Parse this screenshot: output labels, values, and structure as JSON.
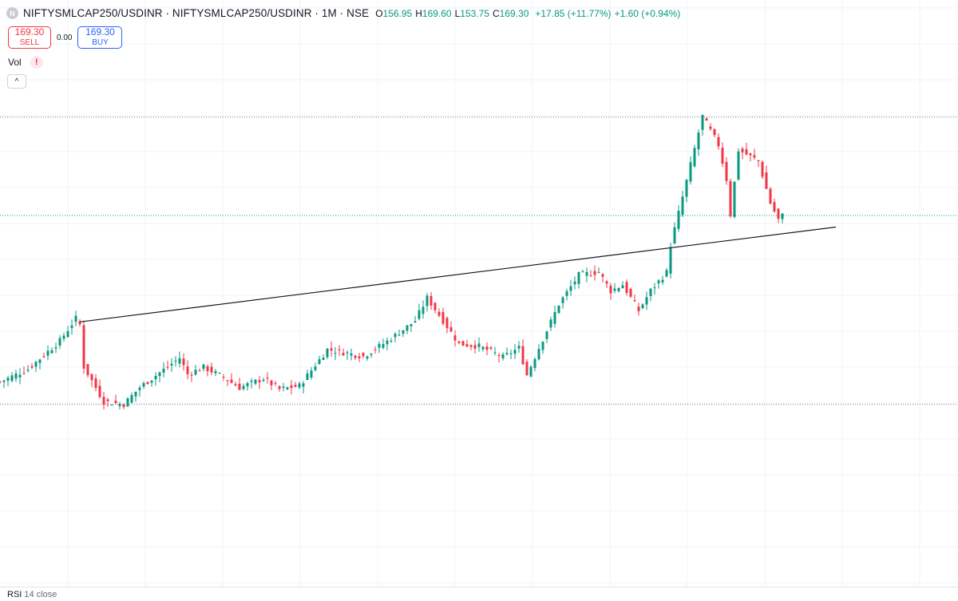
{
  "header": {
    "symbol_title": "NIFTYSMLCAP250/USDINR · NIFTYSMLCAP250/USDINR · 1M · NSE",
    "logo_letter": "N",
    "open_label": "O",
    "open": "156.95",
    "high_label": "H",
    "high": "169.60",
    "low_label": "L",
    "low": "153.75",
    "close_label": "C",
    "close": "169.30",
    "change": "+17.85 (+11.77%)",
    "volume_change": "+1.60 (+0.94%)"
  },
  "trade": {
    "sell_price": "169.30",
    "sell_label": "SELL",
    "spread": "0.00",
    "buy_price": "169.30",
    "buy_label": "BUY"
  },
  "indicators": {
    "vol_label": "Vol",
    "warning_glyph": "!",
    "collapse_glyph": "^",
    "rsi_label": "RSI",
    "rsi_params": "14 close"
  },
  "colors": {
    "up": "#089981",
    "down": "#f23645",
    "trendline": "#131722",
    "grid": "#f0f3fa"
  },
  "chart_data": {
    "type": "candlestick",
    "interval": "1M",
    "x_range": [
      0,
      200
    ],
    "y_range": [
      0,
      100
    ],
    "grid": true,
    "trendline": {
      "from": [
        20,
        42.2
      ],
      "to": [
        210,
        66.7
      ]
    },
    "horizontal_levels": [
      95.1,
      69.7,
      20.9
    ],
    "last_price_line": 69.7,
    "close_path": [
      [
        0,
        26.7
      ],
      [
        7,
        30.0
      ],
      [
        15,
        37.3
      ],
      [
        19,
        43.1
      ],
      [
        20,
        41.5
      ],
      [
        21,
        30.6
      ],
      [
        26,
        21.6
      ],
      [
        31,
        20.9
      ],
      [
        35,
        25.3
      ],
      [
        40,
        29.1
      ],
      [
        45,
        32.9
      ],
      [
        47,
        28.7
      ],
      [
        51,
        30.5
      ],
      [
        56,
        27.9
      ],
      [
        60,
        25.2
      ],
      [
        66,
        27.6
      ],
      [
        70,
        24.8
      ],
      [
        75,
        25.7
      ],
      [
        82,
        35.1
      ],
      [
        91,
        33.3
      ],
      [
        97,
        37.2
      ],
      [
        104,
        42.5
      ],
      [
        107,
        48.4
      ],
      [
        110,
        44.0
      ],
      [
        115,
        36.5
      ],
      [
        120,
        35.9
      ],
      [
        126,
        33.1
      ],
      [
        130,
        35.5
      ],
      [
        132,
        28.5
      ],
      [
        135,
        35.5
      ],
      [
        140,
        46.8
      ],
      [
        145,
        54.3
      ],
      [
        150,
        55.1
      ],
      [
        153,
        50.2
      ],
      [
        156,
        51.8
      ],
      [
        160,
        45.1
      ],
      [
        163,
        50.3
      ],
      [
        167,
        55.0
      ],
      [
        168,
        62.1
      ],
      [
        172,
        78.6
      ],
      [
        176,
        95.3
      ],
      [
        180,
        87.9
      ],
      [
        182,
        79.0
      ],
      [
        183,
        69.9
      ],
      [
        185,
        86.6
      ],
      [
        190,
        83.8
      ],
      [
        193,
        72.9
      ],
      [
        195,
        68.6
      ],
      [
        196,
        69.7
      ]
    ]
  }
}
